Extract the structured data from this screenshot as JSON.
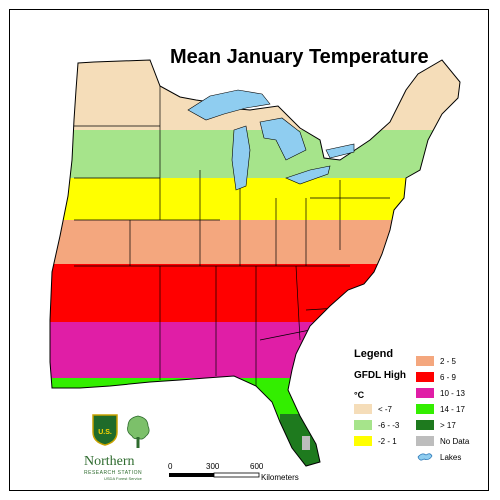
{
  "title": "Mean January Temperature",
  "legend": {
    "title": "Legend",
    "subtitle": "GFDL High",
    "unit": "°C",
    "items": [
      {
        "label": "< -7",
        "color": "#f5ddb9"
      },
      {
        "label": "-6 - -3",
        "color": "#a6e48b"
      },
      {
        "label": "-2 - 1",
        "color": "#ffff00"
      },
      {
        "label": "2 - 5",
        "color": "#f4a77e"
      },
      {
        "label": "6 - 9",
        "color": "#ff0000"
      },
      {
        "label": "10 - 13",
        "color": "#e01ea6"
      },
      {
        "label": "14 - 17",
        "color": "#33ee00"
      },
      {
        "label": "> 17",
        "color": "#1e7a1e"
      },
      {
        "label": "No Data",
        "color": "#bdbdbd"
      },
      {
        "label": "Lakes",
        "color": "#8fcdf0"
      }
    ]
  },
  "logo": {
    "shield_text": "U.S.",
    "org_name": "Northern",
    "org_sub": "RESEARCH STATION",
    "org_sub2": "USDA Forest Service"
  },
  "scale": {
    "ticks": [
      "0",
      "300",
      "600"
    ],
    "unit": "Kilometers"
  }
}
